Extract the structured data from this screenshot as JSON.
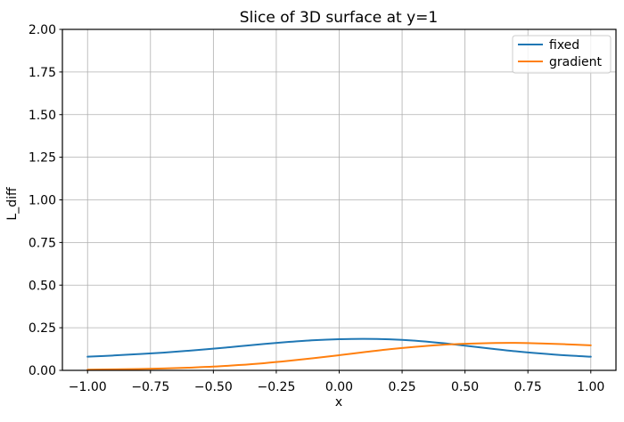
{
  "chart_data": {
    "type": "line",
    "title": "Slice of 3D surface at y=1",
    "xlabel": "x",
    "ylabel": "L_diff",
    "xlim": [
      -1.1,
      1.1
    ],
    "ylim": [
      0,
      2
    ],
    "grid": true,
    "grid_color": "#b0b0b0",
    "axis_color": "#000000",
    "background_color": "#ffffff",
    "legend_position": "upper right",
    "legend_border_color": "#cccccc",
    "x_ticks": [
      {
        "value": -1.0,
        "label": "−1.00"
      },
      {
        "value": -0.75,
        "label": "−0.75"
      },
      {
        "value": -0.5,
        "label": "−0.50"
      },
      {
        "value": -0.25,
        "label": "−0.25"
      },
      {
        "value": 0.0,
        "label": "0.00"
      },
      {
        "value": 0.25,
        "label": "0.25"
      },
      {
        "value": 0.5,
        "label": "0.50"
      },
      {
        "value": 0.75,
        "label": "0.75"
      },
      {
        "value": 1.0,
        "label": "1.00"
      }
    ],
    "y_ticks": [
      {
        "value": 0.0,
        "label": "0.00"
      },
      {
        "value": 0.25,
        "label": "0.25"
      },
      {
        "value": 0.5,
        "label": "0.50"
      },
      {
        "value": 0.75,
        "label": "0.75"
      },
      {
        "value": 1.0,
        "label": "1.00"
      },
      {
        "value": 1.25,
        "label": "1.25"
      },
      {
        "value": 1.5,
        "label": "1.50"
      },
      {
        "value": 1.75,
        "label": "1.75"
      },
      {
        "value": 2.0,
        "label": "2.00"
      }
    ],
    "x": [
      -1.0,
      -0.9,
      -0.8,
      -0.7,
      -0.6,
      -0.5,
      -0.4,
      -0.3,
      -0.2,
      -0.1,
      0.0,
      0.1,
      0.2,
      0.3,
      0.4,
      0.5,
      0.6,
      0.7,
      0.8,
      0.9,
      1.0
    ],
    "series": [
      {
        "name": "fixed",
        "color": "#1f77b4",
        "values": [
          0.08,
          0.087,
          0.095,
          0.104,
          0.115,
          0.127,
          0.141,
          0.155,
          0.167,
          0.177,
          0.183,
          0.185,
          0.182,
          0.174,
          0.161,
          0.145,
          0.128,
          0.112,
          0.099,
          0.088,
          0.08
        ]
      },
      {
        "name": "gradient",
        "color": "#ff7f0e",
        "values": [
          0.004,
          0.006,
          0.008,
          0.011,
          0.016,
          0.022,
          0.031,
          0.042,
          0.056,
          0.072,
          0.089,
          0.107,
          0.124,
          0.138,
          0.149,
          0.156,
          0.16,
          0.161,
          0.158,
          0.153,
          0.147
        ]
      }
    ]
  }
}
